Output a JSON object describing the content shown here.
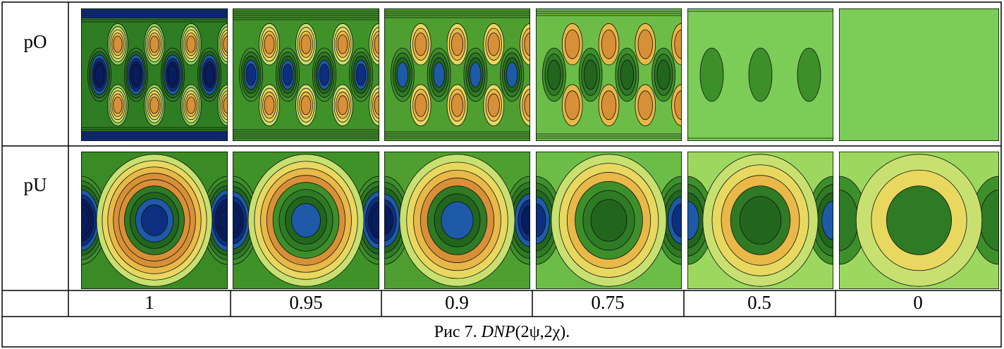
{
  "table": {
    "rows": [
      {
        "label": "pO"
      },
      {
        "label": "pU"
      }
    ],
    "values": [
      "1",
      "0.95",
      "0.9",
      "0.75",
      "0.5",
      "0"
    ]
  },
  "caption": {
    "prefix": "Рис 7.",
    "italic": "DNP",
    "suffix": "(2ψ,2χ)."
  }
}
